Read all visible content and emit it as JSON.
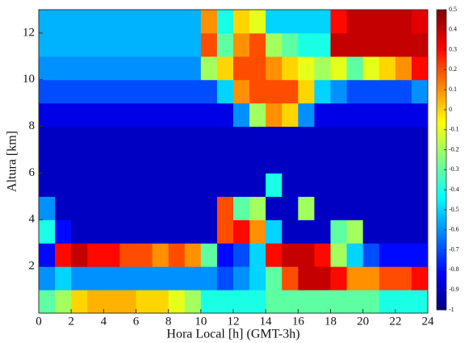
{
  "chart_data": {
    "type": "heatmap",
    "colormap": "jet",
    "xlabel": "Hora Local [h] (GMT-3h)",
    "ylabel": "Altura [km]",
    "xlim": [
      0,
      24
    ],
    "ylim": [
      0,
      13
    ],
    "xticks": [
      0,
      2,
      4,
      6,
      8,
      10,
      12,
      14,
      16,
      18,
      20,
      22,
      24
    ],
    "yticks": [
      2,
      4,
      6,
      8,
      10,
      12
    ],
    "zlim": [
      -1,
      0.5
    ],
    "zticks": [
      0.5,
      0.4,
      0.3,
      0.2,
      0.1,
      0,
      -0.1,
      -0.2,
      -0.3,
      -0.4,
      -0.5,
      -0.6,
      -0.7,
      -0.8,
      -0.9,
      -1
    ],
    "x": [
      0.5,
      1.5,
      2.5,
      3.5,
      4.5,
      5.5,
      6.5,
      7.5,
      8.5,
      9.5,
      10.5,
      11.5,
      12.5,
      13.5,
      14.5,
      15.5,
      16.5,
      17.5,
      18.5,
      19.5,
      20.5,
      21.5,
      22.5,
      23.5
    ],
    "y": [
      0.5,
      1.5,
      2.5,
      3.5,
      4.5,
      5.5,
      6.5,
      7.5,
      8.5,
      9.5,
      10.5,
      11.5,
      12.5
    ],
    "z": [
      [
        -0.3,
        -0.2,
        0.0,
        0.05,
        0.05,
        0.05,
        0.0,
        0.0,
        -0.1,
        -0.2,
        -0.4,
        -0.4,
        -0.4,
        -0.4,
        -0.3,
        -0.3,
        -0.3,
        -0.3,
        -0.3,
        -0.3,
        -0.3,
        -0.4,
        -0.4,
        -0.4
      ],
      [
        -0.6,
        -0.5,
        -0.6,
        -0.6,
        -0.6,
        -0.6,
        -0.6,
        -0.6,
        -0.6,
        -0.6,
        -0.6,
        -0.7,
        -0.6,
        -0.5,
        -0.3,
        0.2,
        0.4,
        0.4,
        0.3,
        0.1,
        0.1,
        0.2,
        0.2,
        0.3
      ],
      [
        -0.8,
        0.3,
        0.4,
        0.3,
        0.3,
        0.2,
        0.2,
        0.1,
        0.2,
        0.1,
        -0.3,
        -0.8,
        -0.7,
        -0.5,
        0.3,
        0.4,
        0.4,
        0.3,
        -0.2,
        -0.5,
        -0.7,
        -0.8,
        -0.8,
        -0.8
      ],
      [
        -0.4,
        -0.8,
        -0.9,
        -0.9,
        -0.9,
        -0.9,
        -0.9,
        -0.9,
        -0.9,
        -0.9,
        -0.9,
        0.2,
        0.3,
        0.1,
        -0.5,
        -0.9,
        -0.9,
        -0.9,
        -0.3,
        -0.2,
        -0.9,
        -0.9,
        -0.9,
        -0.9
      ],
      [
        -0.6,
        -0.9,
        -0.9,
        -0.9,
        -0.9,
        -0.9,
        -0.9,
        -0.9,
        -0.9,
        -0.9,
        -0.9,
        0.2,
        -0.3,
        -0.2,
        -0.9,
        -0.9,
        -0.2,
        -0.9,
        -0.9,
        -0.9,
        -0.9,
        -0.9,
        -0.9,
        -0.9
      ],
      [
        -0.9,
        -0.9,
        -0.9,
        -0.9,
        -0.9,
        -0.9,
        -0.9,
        -0.9,
        -0.9,
        -0.9,
        -0.9,
        -0.9,
        -0.9,
        -0.9,
        -0.4,
        -0.9,
        -0.9,
        -0.9,
        -0.9,
        -0.9,
        -0.9,
        -0.9,
        -0.9,
        -0.9
      ],
      [
        -0.9,
        -0.9,
        -0.9,
        -0.9,
        -0.9,
        -0.9,
        -0.9,
        -0.9,
        -0.9,
        -0.9,
        -0.9,
        -0.9,
        -0.9,
        -0.9,
        -0.9,
        -0.9,
        -0.9,
        -0.9,
        -0.9,
        -0.9,
        -0.9,
        -0.9,
        -0.9,
        -0.9
      ],
      [
        -0.9,
        -0.9,
        -0.9,
        -0.9,
        -0.9,
        -0.9,
        -0.9,
        -0.9,
        -0.9,
        -0.9,
        -0.9,
        -0.9,
        -0.9,
        -0.9,
        -0.9,
        -0.9,
        -0.9,
        -0.9,
        -0.9,
        -0.9,
        -0.9,
        -0.9,
        -0.9,
        -0.9
      ],
      [
        -0.85,
        -0.85,
        -0.85,
        -0.85,
        -0.85,
        -0.85,
        -0.85,
        -0.85,
        -0.85,
        -0.85,
        -0.85,
        -0.85,
        -0.6,
        -0.2,
        0.1,
        0.0,
        -0.6,
        -0.85,
        -0.85,
        -0.85,
        -0.85,
        -0.85,
        -0.85,
        -0.85
      ],
      [
        -0.7,
        -0.7,
        -0.7,
        -0.7,
        -0.7,
        -0.7,
        -0.7,
        -0.7,
        -0.7,
        -0.7,
        -0.7,
        -0.5,
        0.1,
        0.2,
        0.2,
        0.2,
        0.0,
        -0.5,
        -0.6,
        -0.7,
        -0.7,
        -0.7,
        -0.7,
        -0.6
      ],
      [
        -0.6,
        -0.6,
        -0.6,
        -0.6,
        -0.6,
        -0.6,
        -0.6,
        -0.6,
        -0.6,
        -0.6,
        -0.2,
        0.0,
        0.2,
        0.2,
        0.1,
        0.0,
        -0.1,
        -0.2,
        -0.1,
        -0.3,
        -0.1,
        0.0,
        0.1,
        0.3
      ],
      [
        -0.55,
        -0.55,
        -0.55,
        -0.55,
        -0.55,
        -0.55,
        -0.55,
        -0.55,
        -0.55,
        -0.55,
        0.2,
        -0.3,
        0.1,
        0.2,
        -0.2,
        -0.3,
        -0.4,
        -0.4,
        0.4,
        0.4,
        0.4,
        0.4,
        0.4,
        0.4
      ],
      [
        -0.55,
        -0.55,
        -0.55,
        -0.55,
        -0.55,
        -0.55,
        -0.55,
        -0.55,
        -0.55,
        -0.55,
        0.1,
        -0.4,
        0.0,
        -0.1,
        -0.5,
        -0.5,
        -0.5,
        -0.5,
        0.3,
        0.4,
        0.4,
        0.4,
        0.4,
        0.35
      ]
    ]
  }
}
